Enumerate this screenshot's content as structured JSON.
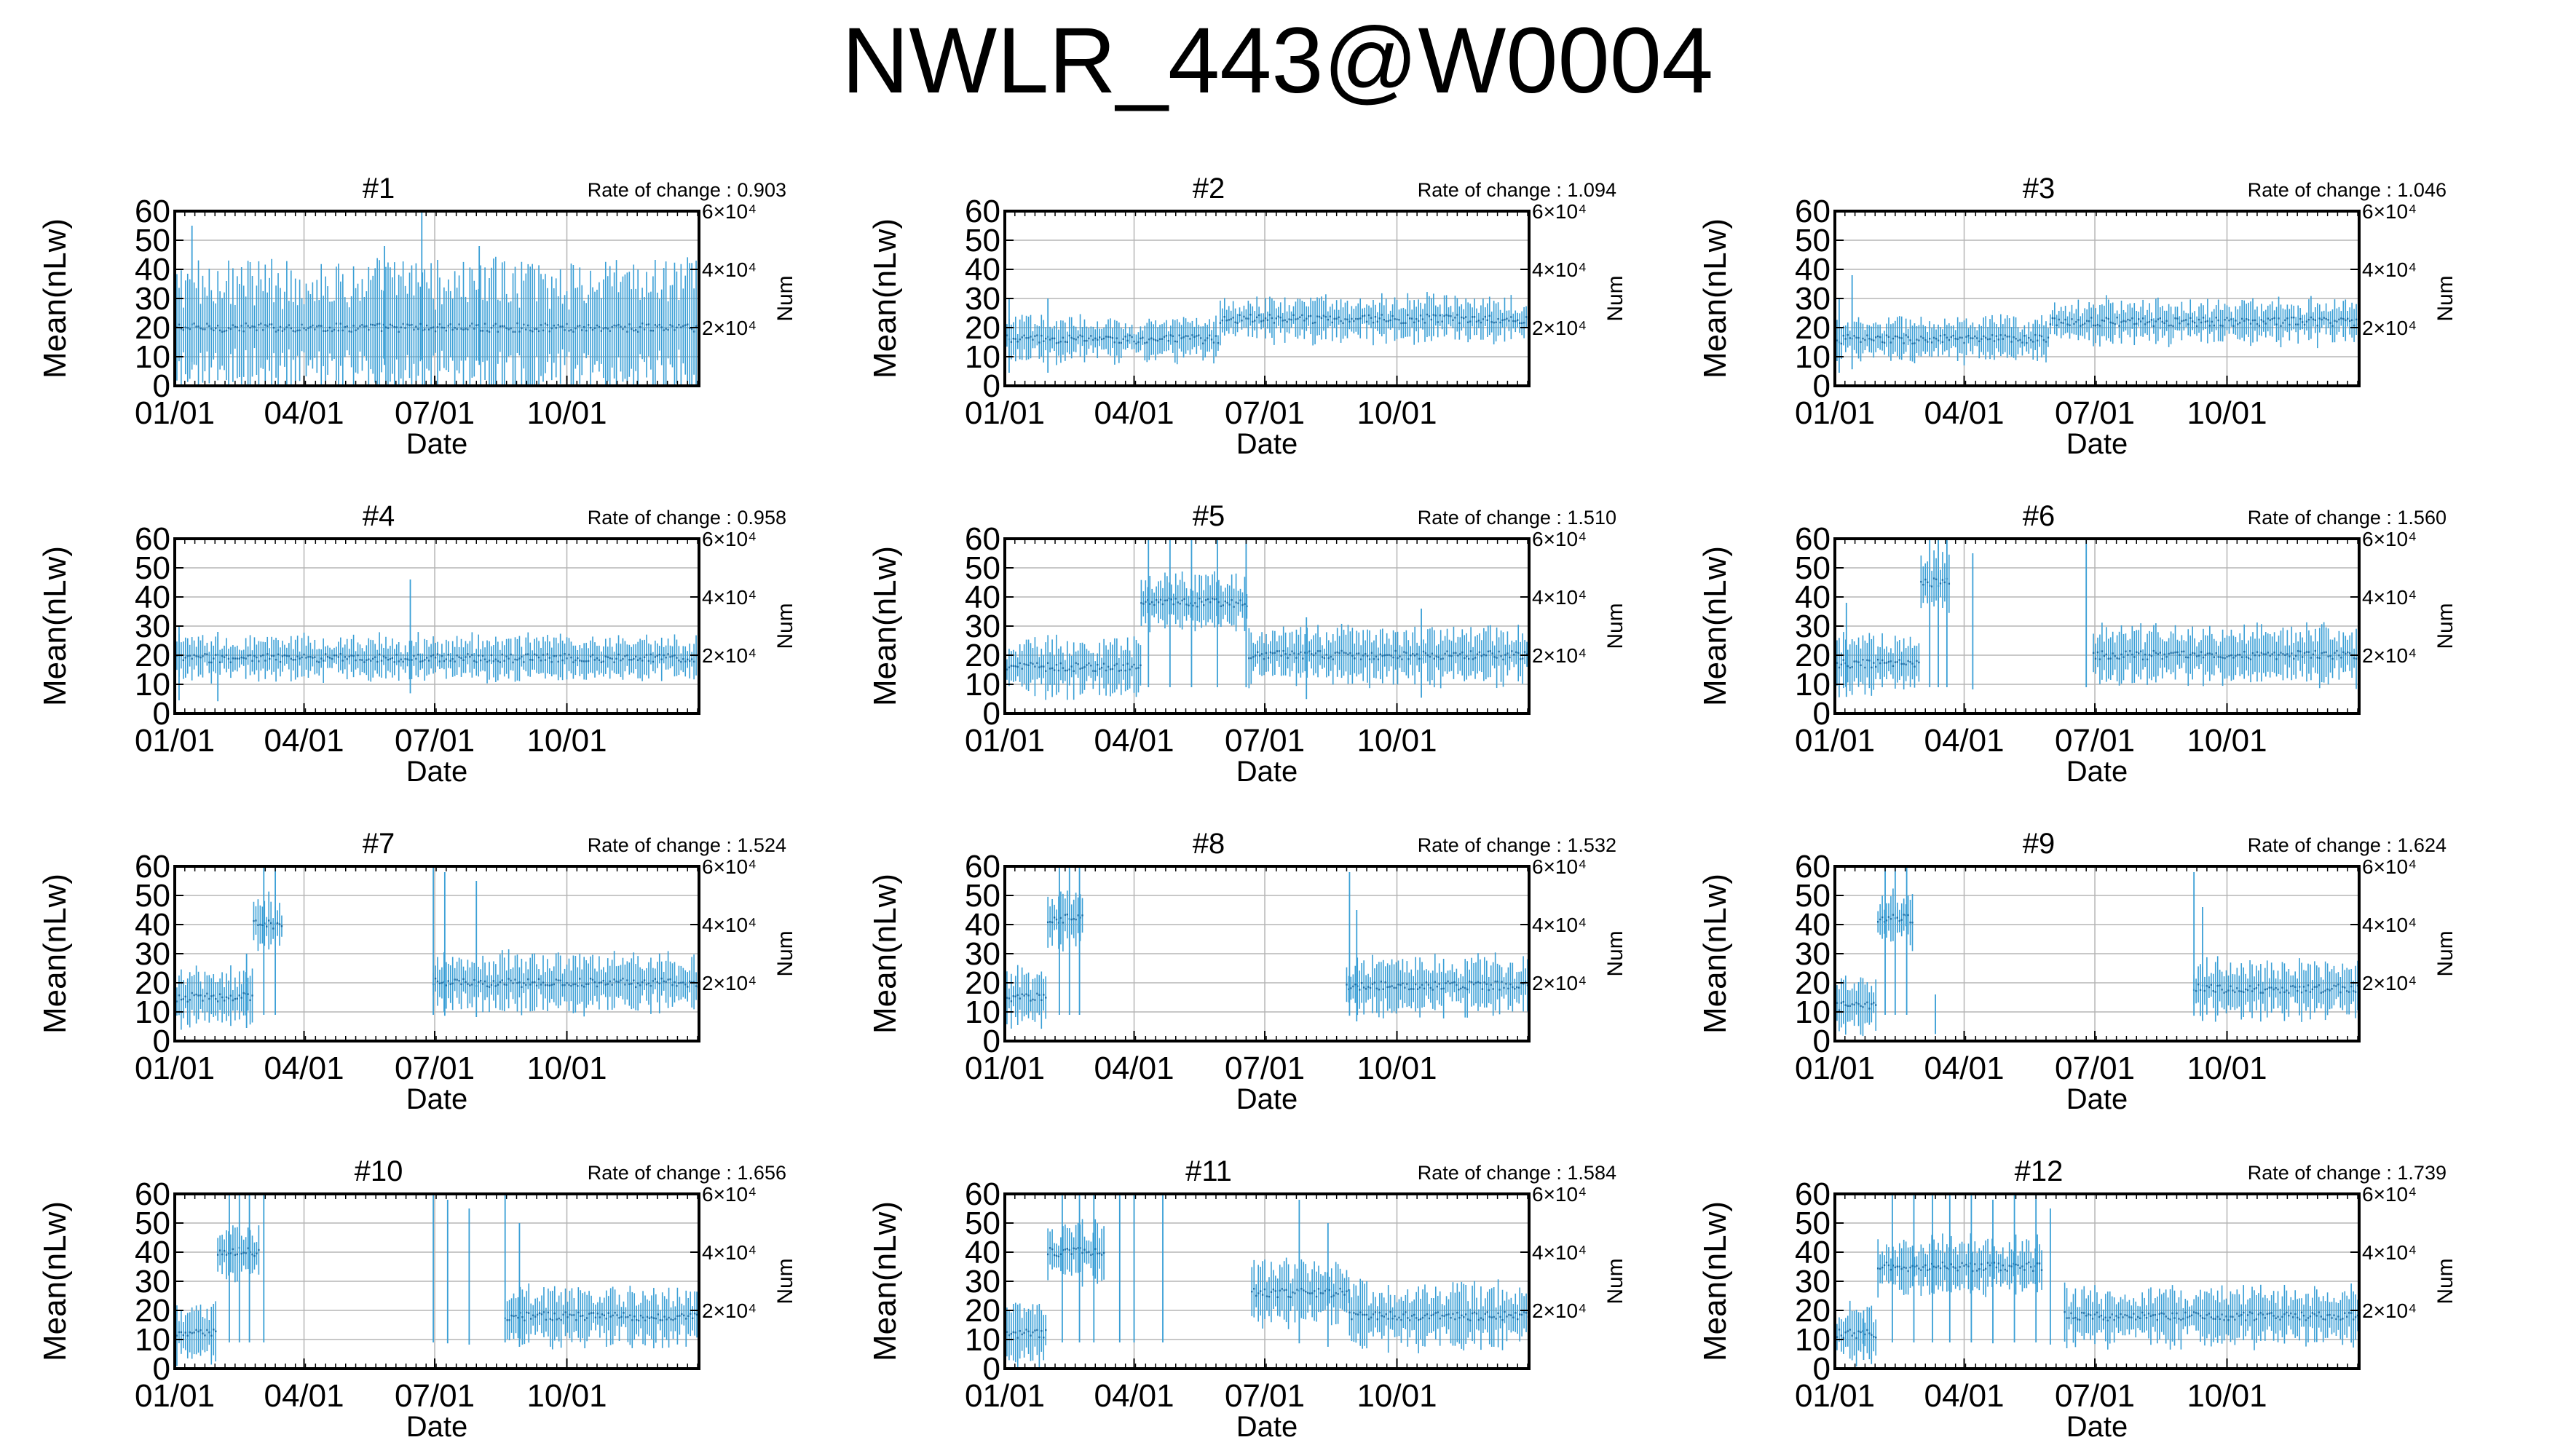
{
  "figure": {
    "title": "NWLR_443@W0004"
  },
  "colors": {
    "series": "#3a9fd6",
    "grid": "#b5b5b5",
    "axis": "#000000"
  },
  "shared_axes": {
    "xlabel": "Date",
    "ylabel": "Mean(nLw)",
    "y2label": "Num",
    "x_ticks": [
      "01/01",
      "04/01",
      "07/01",
      "10/01"
    ],
    "x_tick_days": [
      0,
      90,
      181,
      273
    ],
    "x_range_days": [
      0,
      365
    ],
    "ylim": [
      0,
      60
    ],
    "y_ticks": [
      0,
      10,
      20,
      30,
      40,
      50,
      60
    ],
    "y2_ticks": [
      "2×10⁴",
      "4×10⁴",
      "6×10⁴"
    ],
    "y2_tick_values": [
      20000,
      40000,
      60000
    ],
    "y2lim": [
      0,
      60000
    ]
  },
  "rate_prefix": "Rate of change : ",
  "chart_data": [
    {
      "type": "line",
      "title": "#1",
      "rate_of_change": "0.903",
      "segments": [
        {
          "from": 0,
          "to": 365,
          "level": 20
        }
      ],
      "band": 18,
      "spikes": [
        [
          172,
          60
        ],
        [
          12,
          55
        ],
        [
          146,
          48
        ],
        [
          212,
          48
        ]
      ]
    },
    {
      "type": "line",
      "title": "#2",
      "rate_of_change": "1.094",
      "segments": [
        {
          "from": 0,
          "to": 150,
          "level": 16
        },
        {
          "from": 150,
          "to": 365,
          "level": 23
        }
      ],
      "band": 6,
      "spikes": [
        [
          3,
          30
        ],
        [
          30,
          30
        ]
      ]
    },
    {
      "type": "line",
      "title": "#3",
      "rate_of_change": "1.046",
      "segments": [
        {
          "from": 0,
          "to": 150,
          "level": 16
        },
        {
          "from": 150,
          "to": 365,
          "level": 22
        }
      ],
      "band": 6,
      "spikes": [
        [
          12,
          38
        ],
        [
          3,
          30
        ]
      ]
    },
    {
      "type": "line",
      "title": "#4",
      "rate_of_change": "0.958",
      "segments": [
        {
          "from": 0,
          "to": 365,
          "level": 19
        }
      ],
      "band": 6,
      "spikes": [
        [
          164,
          46
        ],
        [
          3,
          30
        ],
        [
          30,
          28
        ]
      ]
    },
    {
      "type": "line",
      "title": "#5",
      "rate_of_change": "1.510",
      "segments": [
        {
          "from": 0,
          "to": 95,
          "level": 16
        },
        {
          "from": 95,
          "to": 170,
          "level": 38
        },
        {
          "from": 170,
          "to": 365,
          "level": 20
        }
      ],
      "band": 8,
      "spikes": [
        [
          100,
          60
        ],
        [
          115,
          60
        ],
        [
          130,
          60
        ],
        [
          148,
          60
        ],
        [
          168,
          60
        ],
        [
          290,
          36
        ],
        [
          210,
          33
        ]
      ]
    },
    {
      "type": "line",
      "title": "#6",
      "rate_of_change": "1.560",
      "segments": [
        {
          "from": 0,
          "to": 60,
          "level": 17
        },
        {
          "from": 60,
          "to": 80,
          "level": 45
        },
        {
          "from": 180,
          "to": 365,
          "level": 20
        }
      ],
      "band": 8,
      "spikes": [
        [
          66,
          60
        ],
        [
          72,
          60
        ],
        [
          78,
          60
        ],
        [
          96,
          55
        ],
        [
          175,
          60
        ],
        [
          8,
          38
        ]
      ]
    },
    {
      "type": "line",
      "title": "#7",
      "rate_of_change": "1.524",
      "segments": [
        {
          "from": 0,
          "to": 55,
          "level": 15
        },
        {
          "from": 55,
          "to": 75,
          "level": 40
        },
        {
          "from": 180,
          "to": 365,
          "level": 20
        }
      ],
      "band": 8,
      "spikes": [
        [
          62,
          60
        ],
        [
          70,
          60
        ],
        [
          180,
          60
        ],
        [
          188,
          58
        ],
        [
          210,
          55
        ],
        [
          50,
          30
        ]
      ]
    },
    {
      "type": "line",
      "title": "#8",
      "rate_of_change": "1.532",
      "segments": [
        {
          "from": 0,
          "to": 30,
          "level": 15
        },
        {
          "from": 30,
          "to": 55,
          "level": 42
        },
        {
          "from": 238,
          "to": 365,
          "level": 19
        }
      ],
      "band": 8,
      "spikes": [
        [
          38,
          60
        ],
        [
          45,
          60
        ],
        [
          52,
          60
        ],
        [
          240,
          58
        ],
        [
          245,
          45
        ]
      ]
    },
    {
      "type": "line",
      "title": "#9",
      "rate_of_change": "1.624",
      "segments": [
        {
          "from": 0,
          "to": 30,
          "level": 12
        },
        {
          "from": 30,
          "to": 55,
          "level": 42
        },
        {
          "from": 250,
          "to": 365,
          "level": 18
        }
      ],
      "band": 8,
      "spikes": [
        [
          35,
          60
        ],
        [
          42,
          60
        ],
        [
          50,
          60
        ],
        [
          250,
          58
        ],
        [
          256,
          46
        ],
        [
          70,
          16
        ]
      ]
    },
    {
      "type": "line",
      "title": "#10",
      "rate_of_change": "1.656",
      "segments": [
        {
          "from": 0,
          "to": 30,
          "level": 12
        },
        {
          "from": 30,
          "to": 60,
          "level": 40
        },
        {
          "from": 230,
          "to": 365,
          "level": 18
        }
      ],
      "band": 8,
      "spikes": [
        [
          38,
          60
        ],
        [
          45,
          60
        ],
        [
          52,
          60
        ],
        [
          62,
          60
        ],
        [
          180,
          60
        ],
        [
          190,
          58
        ],
        [
          205,
          55
        ],
        [
          230,
          60
        ],
        [
          240,
          50
        ]
      ]
    },
    {
      "type": "line",
      "title": "#11",
      "rate_of_change": "1.584",
      "segments": [
        {
          "from": 0,
          "to": 30,
          "level": 12
        },
        {
          "from": 30,
          "to": 70,
          "level": 40
        },
        {
          "from": 172,
          "to": 240,
          "level": 26
        },
        {
          "from": 240,
          "to": 365,
          "level": 18
        }
      ],
      "band": 9,
      "spikes": [
        [
          40,
          60
        ],
        [
          52,
          60
        ],
        [
          62,
          60
        ],
        [
          80,
          60
        ],
        [
          90,
          60
        ],
        [
          110,
          60
        ],
        [
          205,
          58
        ],
        [
          225,
          50
        ]
      ]
    },
    {
      "type": "line",
      "title": "#12",
      "rate_of_change": "1.739",
      "segments": [
        {
          "from": 0,
          "to": 30,
          "level": 12
        },
        {
          "from": 30,
          "to": 145,
          "level": 35
        },
        {
          "from": 160,
          "to": 365,
          "level": 18
        }
      ],
      "band": 8,
      "spikes": [
        [
          40,
          60
        ],
        [
          55,
          60
        ],
        [
          68,
          60
        ],
        [
          80,
          60
        ],
        [
          95,
          60
        ],
        [
          110,
          58
        ],
        [
          125,
          60
        ],
        [
          140,
          60
        ],
        [
          150,
          55
        ],
        [
          20,
          20
        ]
      ]
    }
  ]
}
